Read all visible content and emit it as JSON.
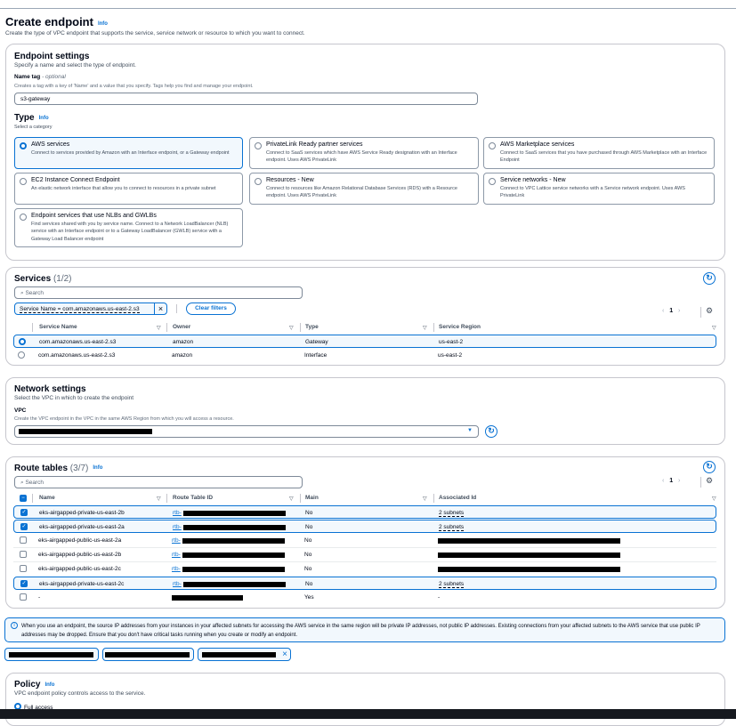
{
  "header": {
    "title": "Create endpoint",
    "info": "Info",
    "subtitle": "Create the type of VPC endpoint that supports the service, service network or resource to which you want to connect."
  },
  "endpoint_settings": {
    "title": "Endpoint settings",
    "subtitle": "Specify a name and select the type of endpoint.",
    "name_tag_label": "Name tag",
    "name_tag_optional": " - optional",
    "name_tag_desc": "Creates a tag with a key of 'Name' and a value that you specify. Tags help you find and manage your endpoint.",
    "name_tag_value": "s3-gateway",
    "type_label": "Type",
    "type_info": "Info",
    "type_desc": "Select a category",
    "types": [
      {
        "title": "AWS services",
        "desc": "Connect to services provided by Amazon with an Interface endpoint, or a Gateway endpoint",
        "selected": true
      },
      {
        "title": "PrivateLink Ready partner services",
        "desc": "Connect to SaaS services which have AWS Service Ready designation with an Interface endpoint. Uses AWS PrivateLink",
        "selected": false
      },
      {
        "title": "AWS Marketplace services",
        "desc": "Connect to SaaS services that you have purchased through AWS Marketplace with an Interface Endpoint",
        "selected": false
      },
      {
        "title": "EC2 Instance Connect Endpoint",
        "desc": "An elastic network interface that allow you to connect to resources in a private subnet",
        "selected": false
      },
      {
        "title": "Resources - New",
        "desc": "Connect to resources like Amazon Relational Database Services (RDS) with a Resource endpoint. Uses AWS PrivateLink",
        "selected": false
      },
      {
        "title": "Service networks - New",
        "desc": "Connect to VPC Lattice service networks with a Service network endpoint. Uses AWS PrivateLink",
        "selected": false
      },
      {
        "title": "Endpoint services that use NLBs and GWLBs",
        "desc": "Find services shared with you by service name. Connect to a Network LoadBalancer (NLB) service with an Interface endpoint or to a Gateway LoadBalancer (GWLB) service with a Gateway Load Balancer endpoint",
        "selected": false
      }
    ]
  },
  "services": {
    "title": "Services",
    "count": "(1/2)",
    "search_placeholder": "Search",
    "filter": "Service Name = com.amazonaws.us-east-2.s3",
    "clear_filters": "Clear filters",
    "page": "1",
    "columns": [
      "Service Name",
      "Owner",
      "Type",
      "Service Region"
    ],
    "rows": [
      {
        "name": "com.amazonaws.us-east-2.s3",
        "owner": "amazon",
        "type": "Gateway",
        "region": "us-east-2",
        "selected": true
      },
      {
        "name": "com.amazonaws.us-east-2.s3",
        "owner": "amazon",
        "type": "Interface",
        "region": "us-east-2",
        "selected": false
      }
    ]
  },
  "network": {
    "title": "Network settings",
    "subtitle": "Select the VPC in which to create the endpoint",
    "vpc_label": "VPC",
    "vpc_desc": "Create the VPC endpoint in the VPC in the same AWS Region from which you will access a resource."
  },
  "route_tables": {
    "title": "Route tables",
    "count": "(3/7)",
    "info": "Info",
    "search_placeholder": "Search",
    "page": "1",
    "columns": [
      "Name",
      "Route Table ID",
      "Main",
      "Associated Id"
    ],
    "rows": [
      {
        "name": "eks-airgapped-private-us-east-2b",
        "id": "rtb-",
        "main": "No",
        "assoc": "2 subnets",
        "checked": true
      },
      {
        "name": "eks-airgapped-private-us-east-2a",
        "id": "rtb-",
        "main": "No",
        "assoc": "2 subnets",
        "checked": true
      },
      {
        "name": "eks-airgapped-public-us-east-2a",
        "id": "rtb-",
        "main": "No",
        "assoc": "",
        "checked": false
      },
      {
        "name": "eks-airgapped-public-us-east-2b",
        "id": "rtb-",
        "main": "No",
        "assoc": "",
        "checked": false
      },
      {
        "name": "eks-airgapped-public-us-east-2c",
        "id": "rtb-",
        "main": "No",
        "assoc": "",
        "checked": false
      },
      {
        "name": "eks-airgapped-private-us-east-2c",
        "id": "rtb-",
        "main": "No",
        "assoc": "2 subnets",
        "checked": true
      },
      {
        "name": "-",
        "id": "",
        "main": "Yes",
        "assoc": "-",
        "checked": false
      }
    ]
  },
  "alert": {
    "text": "When you use an endpoint, the source IP addresses from your instances in your affected subnets for accessing the AWS service in the same region will be private IP addresses, not public IP addresses. Existing connections from your affected subnets to the AWS service that use public IP addresses may be dropped. Ensure that you don't have critical tasks running when you create or modify an endpoint."
  },
  "policy": {
    "title": "Policy",
    "info": "Info",
    "subtitle": "VPC endpoint policy controls access to the service.",
    "option": "Full access"
  },
  "colors": {
    "accent": "#0972d3",
    "selected_bg": "#f2f8fd"
  }
}
